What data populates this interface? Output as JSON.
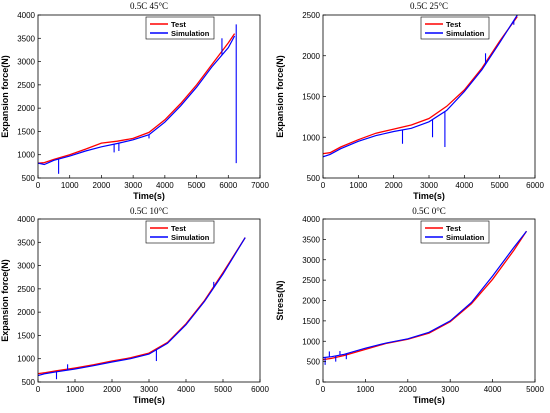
{
  "figure": {
    "colors": {
      "test": "#ff0000",
      "simulation": "#0000ff",
      "axis": "#000000"
    }
  },
  "chart_data": [
    {
      "type": "line",
      "title": "0.5C  45°C",
      "xlabel": "Time(s)",
      "ylabel": "Expansion force(N)",
      "xlim": [
        0,
        7000
      ],
      "ylim": [
        500,
        4000
      ],
      "xticks": [
        0,
        1000,
        2000,
        3000,
        4000,
        5000,
        6000,
        7000
      ],
      "yticks": [
        500,
        1000,
        1500,
        2000,
        2500,
        3000,
        3500,
        4000
      ],
      "legend": "top-right",
      "grid": false,
      "series": [
        {
          "name": "Test",
          "color": "#ff0000",
          "x": [
            0,
            200,
            500,
            1000,
            1500,
            2000,
            2500,
            3000,
            3500,
            4000,
            4500,
            5000,
            5500,
            6000,
            6200
          ],
          "y": [
            820,
            830,
            900,
            1000,
            1120,
            1250,
            1290,
            1350,
            1480,
            1750,
            2100,
            2500,
            2950,
            3400,
            3600
          ]
        },
        {
          "name": "Simulation",
          "color": "#0000ff",
          "x": [
            0,
            200,
            500,
            1000,
            1500,
            2000,
            2500,
            3000,
            3500,
            4000,
            4500,
            5000,
            5500,
            6000,
            6200
          ],
          "y": [
            820,
            790,
            880,
            970,
            1080,
            1170,
            1240,
            1320,
            1430,
            1700,
            2050,
            2450,
            2900,
            3300,
            3550
          ],
          "spikes": [
            {
              "x": 650,
              "y": 590
            },
            {
              "x": 2400,
              "y": 1050
            },
            {
              "x": 2550,
              "y": 1080
            },
            {
              "x": 3500,
              "y": 1350
            },
            {
              "x": 5800,
              "y": 3500
            },
            {
              "x": 6250,
              "y": 3800
            }
          ]
        }
      ]
    },
    {
      "type": "line",
      "title": "0.5C  25°C",
      "xlabel": "Time(s)",
      "ylabel": "Expansion force(N)",
      "xlim": [
        0,
        6000
      ],
      "ylim": [
        500,
        2500
      ],
      "xticks": [
        0,
        1000,
        2000,
        3000,
        4000,
        5000,
        6000
      ],
      "yticks": [
        500,
        1000,
        1500,
        2000,
        2500
      ],
      "legend": "top-right",
      "grid": false,
      "series": [
        {
          "name": "Test",
          "color": "#ff0000",
          "x": [
            0,
            200,
            500,
            1000,
            1500,
            2000,
            2500,
            3000,
            3500,
            4000,
            4500,
            5000,
            5500
          ],
          "y": [
            800,
            810,
            880,
            970,
            1050,
            1100,
            1150,
            1230,
            1380,
            1580,
            1850,
            2180,
            2480
          ]
        },
        {
          "name": "Simulation",
          "color": "#0000ff",
          "x": [
            0,
            200,
            500,
            1000,
            1500,
            2000,
            2500,
            3000,
            3500,
            4000,
            4500,
            5000,
            5500
          ],
          "y": [
            760,
            790,
            860,
            950,
            1020,
            1070,
            1110,
            1190,
            1330,
            1560,
            1830,
            2160,
            2500
          ],
          "spikes": [
            {
              "x": 2250,
              "y": 920
            },
            {
              "x": 3100,
              "y": 1000
            },
            {
              "x": 3450,
              "y": 880
            },
            {
              "x": 4600,
              "y": 2030
            },
            {
              "x": 5400,
              "y": 2380
            }
          ]
        }
      ]
    },
    {
      "type": "line",
      "title": "0.5C  10°C",
      "xlabel": "Time(s)",
      "ylabel": "Expansion force(N)",
      "xlim": [
        0,
        6000
      ],
      "ylim": [
        500,
        4000
      ],
      "xticks": [
        0,
        1000,
        2000,
        3000,
        4000,
        5000,
        6000
      ],
      "yticks": [
        500,
        1000,
        1500,
        2000,
        2500,
        3000,
        3500,
        4000
      ],
      "legend": "top-right",
      "grid": false,
      "series": [
        {
          "name": "Test",
          "color": "#ff0000",
          "x": [
            0,
            200,
            500,
            1000,
            1500,
            2000,
            2500,
            3000,
            3500,
            4000,
            4500,
            5000,
            5600
          ],
          "y": [
            680,
            700,
            740,
            800,
            870,
            950,
            1020,
            1120,
            1350,
            1750,
            2250,
            2850,
            3600
          ]
        },
        {
          "name": "Simulation",
          "color": "#0000ff",
          "x": [
            0,
            200,
            500,
            1000,
            1500,
            2000,
            2500,
            3000,
            3500,
            4000,
            4500,
            5000,
            5600
          ],
          "y": [
            640,
            680,
            720,
            780,
            850,
            930,
            1000,
            1100,
            1330,
            1730,
            2230,
            2820,
            3600
          ],
          "spikes": [
            {
              "x": 500,
              "y": 560
            },
            {
              "x": 800,
              "y": 880
            },
            {
              "x": 3200,
              "y": 950
            },
            {
              "x": 4750,
              "y": 2650
            }
          ]
        }
      ]
    },
    {
      "type": "line",
      "title": "0.5C  0°C",
      "xlabel": "Time(s)",
      "ylabel": "Stress(N)",
      "xlim": [
        0,
        5000
      ],
      "ylim": [
        0,
        4000
      ],
      "xticks": [
        0,
        1000,
        2000,
        3000,
        4000,
        5000
      ],
      "yticks": [
        0,
        500,
        1000,
        1500,
        2000,
        2500,
        3000,
        3500,
        4000
      ],
      "legend": "top-right",
      "grid": false,
      "series": [
        {
          "name": "Test",
          "color": "#ff0000",
          "x": [
            0,
            200,
            500,
            1000,
            1500,
            2000,
            2500,
            3000,
            3500,
            4000,
            4500,
            4800
          ],
          "y": [
            550,
            580,
            650,
            800,
            950,
            1050,
            1200,
            1480,
            1920,
            2520,
            3230,
            3700
          ]
        },
        {
          "name": "Simulation",
          "color": "#0000ff",
          "x": [
            0,
            200,
            500,
            1000,
            1500,
            2000,
            2500,
            3000,
            3500,
            4000,
            4500,
            4800
          ],
          "y": [
            600,
            620,
            680,
            830,
            960,
            1060,
            1220,
            1500,
            1950,
            2600,
            3300,
            3700
          ],
          "spikes": [
            {
              "x": 50,
              "y": 420
            },
            {
              "x": 150,
              "y": 750
            },
            {
              "x": 300,
              "y": 500
            },
            {
              "x": 400,
              "y": 760
            },
            {
              "x": 550,
              "y": 560
            }
          ]
        }
      ]
    }
  ]
}
